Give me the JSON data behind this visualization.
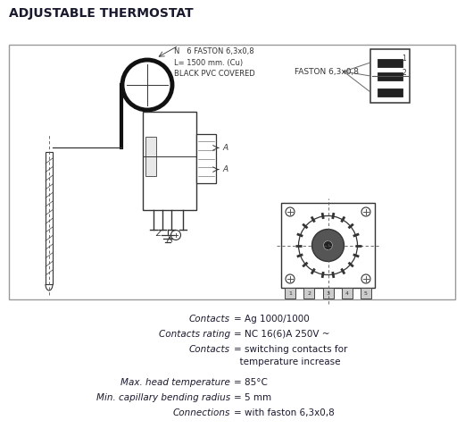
{
  "title": "ADJUSTABLE THERMOSTAT",
  "title_fontsize": 10,
  "title_color": "#1a1a2e",
  "bg_color": "#ffffff",
  "label_cable": "N   6 FASTON 6,3x0,8\nL= 1500 mm. (Cu)\nBLACK PVC COVERED",
  "label_faston": "FASTON 6,3x0,8",
  "label_A": "A",
  "label_Z": "Z",
  "specs": [
    [
      "Contacts",
      "= Ag 1000/1000"
    ],
    [
      "Contacts rating",
      "= NC 16(6)A 250V ~"
    ],
    [
      "Contacts",
      "= switching contacts for"
    ],
    [
      "",
      "  temperature increase"
    ],
    [
      "Max. head temperature",
      "= 85°C"
    ],
    [
      "Min. capillary bending radius",
      "= 5 mm"
    ],
    [
      "Connections",
      "= with faston 6,3x0,8"
    ]
  ]
}
